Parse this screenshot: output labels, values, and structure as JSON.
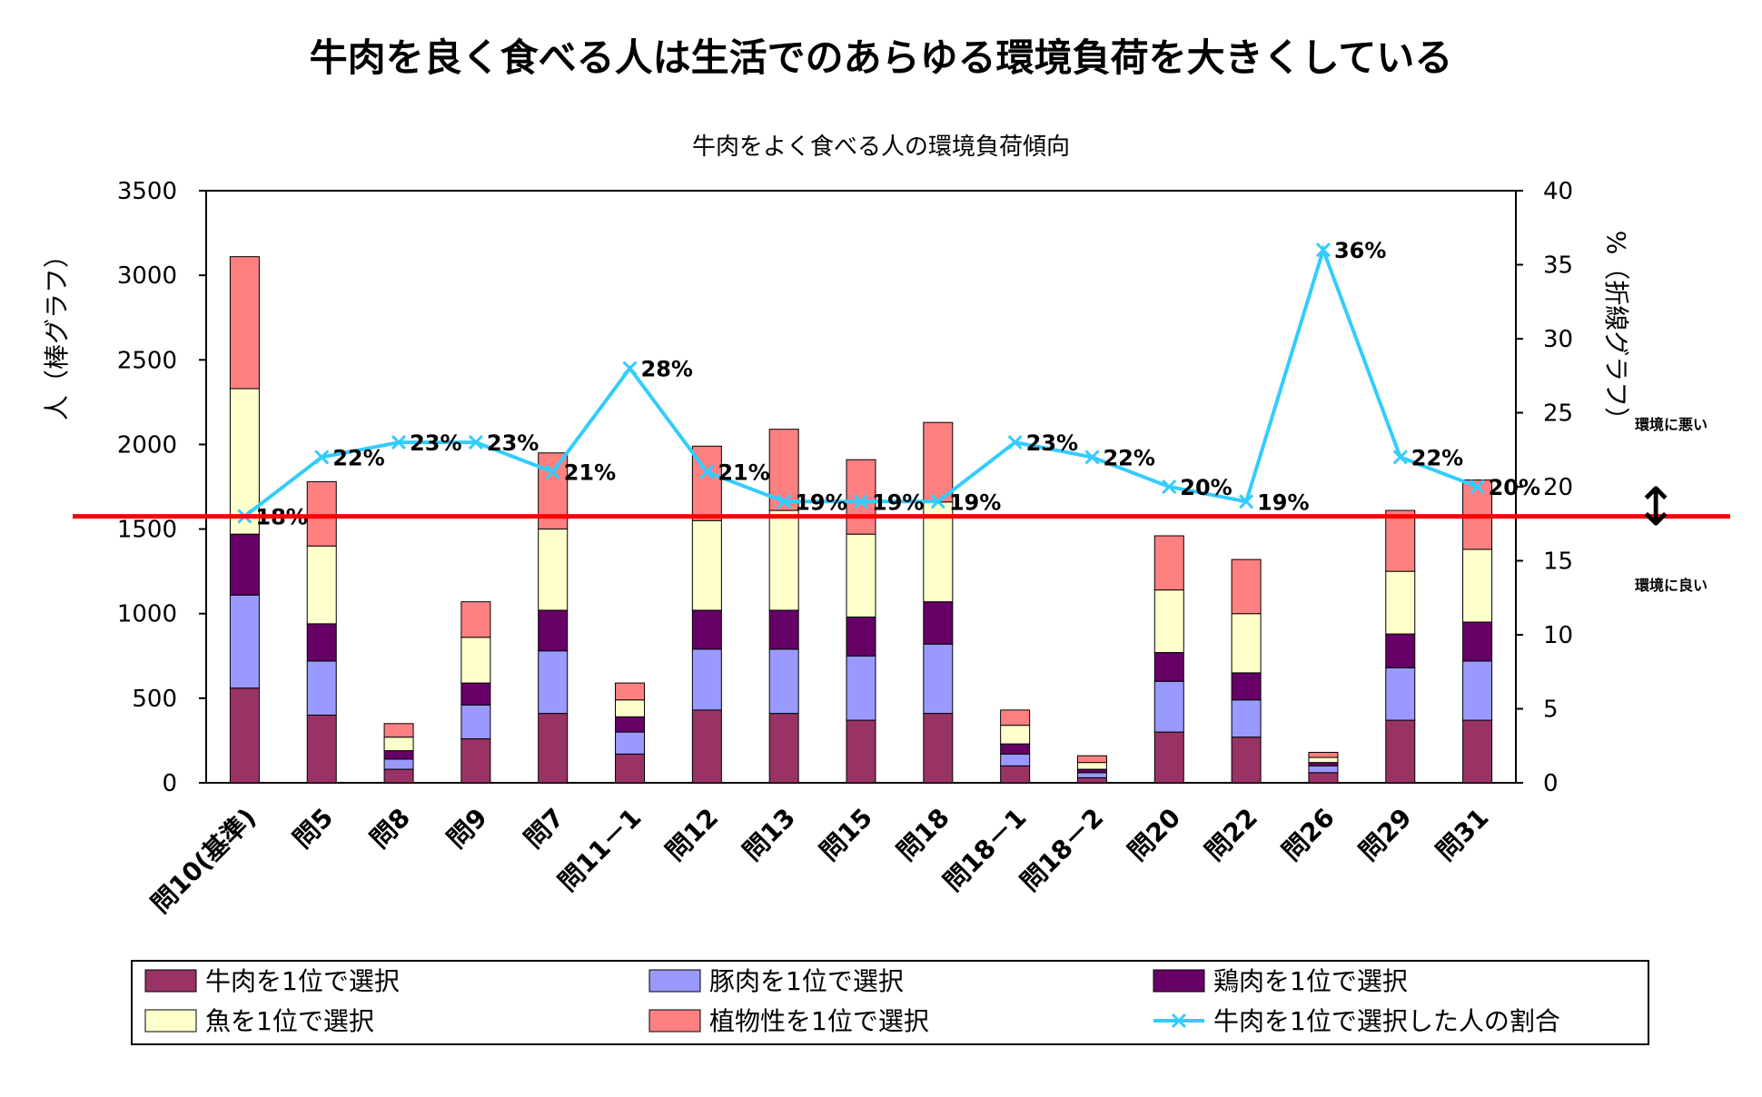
{
  "page": {
    "headline": "牛肉を良く食べる人は生活でのあらゆる環境負荷を大きくしている"
  },
  "chart_data": {
    "type": "bar",
    "stacked": true,
    "title": "牛肉をよく食べる人の環境負荷傾向",
    "ylabel_left": "人（棒グラフ）",
    "ylabel_right": "%（折線グラフ）",
    "ylim_left": [
      0,
      3500
    ],
    "yticks_left": [
      0,
      500,
      1000,
      1500,
      2000,
      2500,
      3000,
      3500
    ],
    "ylim_right": [
      0,
      40
    ],
    "yticks_right": [
      0,
      5,
      10,
      15,
      20,
      25,
      30,
      35,
      40
    ],
    "grid": false,
    "categories": [
      "問10(基準)",
      "問5",
      "問8",
      "問9",
      "問7",
      "問11－1",
      "問12",
      "問13",
      "問15",
      "問18",
      "問18－1",
      "問18－2",
      "問20",
      "問22",
      "問26",
      "問29",
      "問31"
    ],
    "series": [
      {
        "name": "牛肉を1位で選択",
        "color": "#993366",
        "values": [
          560,
          400,
          80,
          260,
          410,
          170,
          430,
          410,
          370,
          410,
          100,
          30,
          300,
          270,
          60,
          370,
          370
        ]
      },
      {
        "name": "豚肉を1位で選択",
        "color": "#9999FF",
        "values": [
          550,
          320,
          60,
          200,
          370,
          130,
          360,
          380,
          380,
          410,
          70,
          30,
          300,
          220,
          40,
          310,
          350
        ]
      },
      {
        "name": "鶏肉を1位で選択",
        "color": "#660066",
        "values": [
          360,
          220,
          50,
          130,
          240,
          90,
          230,
          230,
          230,
          250,
          60,
          20,
          170,
          160,
          20,
          200,
          230
        ]
      },
      {
        "name": "魚を1位で選択",
        "color": "#FFFFCC",
        "values": [
          860,
          460,
          80,
          270,
          480,
          100,
          530,
          590,
          490,
          590,
          110,
          40,
          370,
          350,
          30,
          370,
          430
        ]
      },
      {
        "name": "植物性を1位で選択",
        "color": "#FF8080",
        "values": [
          780,
          380,
          80,
          210,
          450,
          100,
          440,
          480,
          440,
          470,
          90,
          40,
          320,
          320,
          30,
          360,
          410
        ]
      }
    ],
    "line": {
      "name": "牛肉を1位で選択した人の割合",
      "color": "#33CCFF",
      "axis": "right",
      "values": [
        18,
        22,
        23,
        23,
        21,
        28,
        21,
        19,
        19,
        19,
        23,
        22,
        20,
        19,
        36,
        22,
        20
      ],
      "labels": [
        "18%",
        "22%",
        "23%",
        "23%",
        "21%",
        "28%",
        "21%",
        "19%",
        "19%",
        "19%",
        "23%",
        "22%",
        "20%",
        "19%",
        "36%",
        "22%",
        "20%"
      ]
    },
    "reference_line": {
      "color": "#FF0000",
      "value_right_axis": 18
    },
    "annotations": {
      "worse": "環境に悪い",
      "better": "環境に良い",
      "arrow": "↕"
    },
    "legend_placement": "bottom"
  }
}
